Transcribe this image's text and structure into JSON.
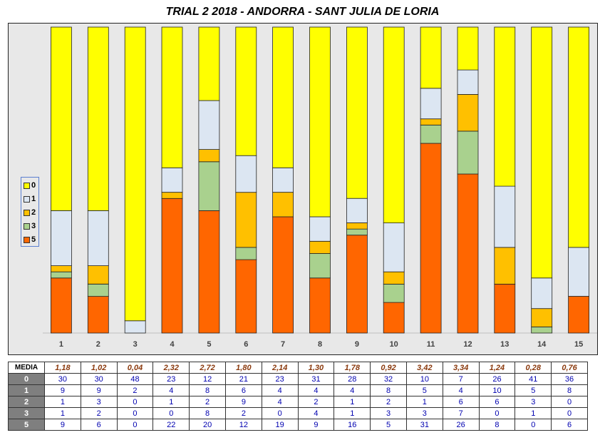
{
  "title": "TRIAL 2 2018 - ANDORRA - SANT JULIA DE LORIA",
  "colors": {
    "0": "#ffff00",
    "1": "#dce6f2",
    "2": "#ffc000",
    "3": "#a9d18e",
    "5": "#ff6600"
  },
  "legend": [
    "0",
    "1",
    "2",
    "3",
    "5"
  ],
  "chart_data": {
    "type": "bar",
    "stacked": true,
    "categories": [
      "1",
      "2",
      "3",
      "4",
      "5",
      "6",
      "7",
      "8",
      "9",
      "10",
      "11",
      "12",
      "13",
      "14",
      "15"
    ],
    "series": [
      {
        "name": "5",
        "values": [
          9,
          6,
          0,
          22,
          20,
          12,
          19,
          9,
          16,
          5,
          31,
          26,
          8,
          0,
          6
        ]
      },
      {
        "name": "3",
        "values": [
          1,
          2,
          0,
          0,
          8,
          2,
          0,
          4,
          1,
          3,
          3,
          7,
          0,
          1,
          0
        ]
      },
      {
        "name": "2",
        "values": [
          1,
          3,
          0,
          1,
          2,
          9,
          4,
          2,
          1,
          2,
          1,
          6,
          6,
          3,
          0
        ]
      },
      {
        "name": "1",
        "values": [
          9,
          9,
          2,
          4,
          8,
          6,
          4,
          4,
          4,
          8,
          5,
          4,
          10,
          5,
          8
        ]
      },
      {
        "name": "0",
        "values": [
          30,
          30,
          48,
          23,
          12,
          21,
          23,
          31,
          28,
          32,
          10,
          7,
          26,
          41,
          36
        ]
      }
    ],
    "ylim": [
      0,
      50
    ],
    "legend_position": "left"
  },
  "table": {
    "media_label": "MEDIA",
    "media": [
      "1,18",
      "1,02",
      "0,04",
      "2,32",
      "2,72",
      "1,80",
      "2,14",
      "1,30",
      "1,78",
      "0,92",
      "3,42",
      "3,34",
      "1,24",
      "0,28",
      "0,76"
    ],
    "rows": [
      {
        "label": "0",
        "values": [
          30,
          30,
          48,
          23,
          12,
          21,
          23,
          31,
          28,
          32,
          10,
          7,
          26,
          41,
          36
        ]
      },
      {
        "label": "1",
        "values": [
          9,
          9,
          2,
          4,
          8,
          6,
          4,
          4,
          4,
          8,
          5,
          4,
          10,
          5,
          8
        ]
      },
      {
        "label": "2",
        "values": [
          1,
          3,
          0,
          1,
          2,
          9,
          4,
          2,
          1,
          2,
          1,
          6,
          6,
          3,
          0
        ]
      },
      {
        "label": "3",
        "values": [
          1,
          2,
          0,
          0,
          8,
          2,
          0,
          4,
          1,
          3,
          3,
          7,
          0,
          1,
          0
        ]
      },
      {
        "label": "5",
        "values": [
          9,
          6,
          0,
          22,
          20,
          12,
          19,
          9,
          16,
          5,
          31,
          26,
          8,
          0,
          6
        ]
      }
    ]
  }
}
